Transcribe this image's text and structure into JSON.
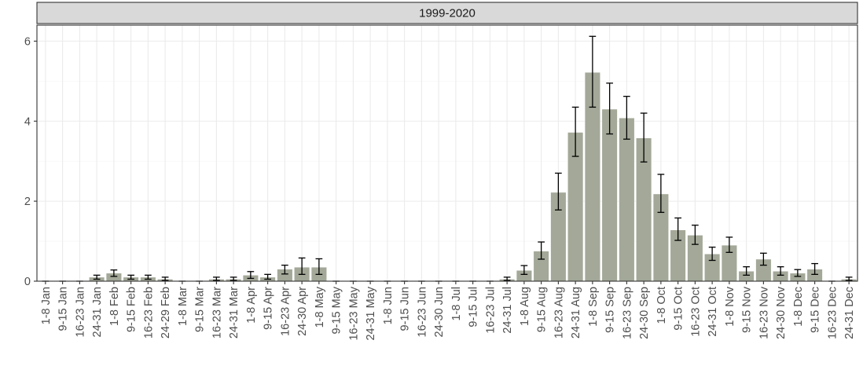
{
  "chart_data": {
    "type": "bar",
    "title": "",
    "facet_label": "1999-2020",
    "xlabel": "",
    "ylabel": "",
    "ylim": [
      0,
      6.4
    ],
    "y_ticks": [
      0,
      2,
      4,
      6
    ],
    "grid": true,
    "categories": [
      "1-8 Jan",
      "9-15 Jan",
      "16-23 Jan",
      "24-31 Jan",
      "1-8 Feb",
      "9-15 Feb",
      "16-23 Feb",
      "24-29 Feb",
      "1-8 Mar",
      "9-15 Mar",
      "16-23 Mar",
      "24-31 Mar",
      "1-8 Apr",
      "9-15 Apr",
      "16-23 Apr",
      "24-30 Apr",
      "1-8 May",
      "9-15 May",
      "16-23 May",
      "24-31 May",
      "1-8 Jun",
      "9-15 Jun",
      "16-23 Jun",
      "24-30 Jun",
      "1-8 Jul",
      "9-15 Jul",
      "16-23 Jul",
      "24-31 Jul",
      "1-8 Aug",
      "9-15 Aug",
      "16-23 Aug",
      "24-31 Aug",
      "1-8 Sep",
      "9-15 Sep",
      "16-23 Sep",
      "24-30 Sep",
      "1-8 Oct",
      "9-15 Oct",
      "16-23 Oct",
      "24-31 Oct",
      "1-8 Nov",
      "9-15 Nov",
      "16-23 Nov",
      "24-30 Nov",
      "1-8 Dec",
      "9-15 Dec",
      "16-23 Dec",
      "24-31 Dec"
    ],
    "values": [
      0,
      0,
      0,
      0.1,
      0.2,
      0.1,
      0.1,
      0.05,
      0,
      0,
      0.05,
      0.05,
      0.15,
      0.1,
      0.3,
      0.35,
      0.35,
      0,
      0,
      0,
      0,
      0,
      0,
      0,
      0,
      0,
      0,
      0.05,
      0.27,
      0.75,
      2.22,
      3.72,
      5.22,
      4.3,
      4.08,
      3.58,
      2.18,
      1.28,
      1.15,
      0.68,
      0.9,
      0.25,
      0.55,
      0.25,
      0.2,
      0.3,
      0,
      0.05
    ],
    "error_lower": [
      0,
      0,
      0,
      0.05,
      0.12,
      0.05,
      0.05,
      0.02,
      0,
      0,
      0.02,
      0.02,
      0.07,
      0.05,
      0.18,
      0.17,
      0.17,
      0,
      0,
      0,
      0,
      0,
      0,
      0,
      0,
      0,
      0,
      0.02,
      0.17,
      0.55,
      1.78,
      3.12,
      4.35,
      3.68,
      3.55,
      2.98,
      1.72,
      1.02,
      0.92,
      0.52,
      0.72,
      0.15,
      0.4,
      0.15,
      0.12,
      0.17,
      0,
      0.02
    ],
    "error_upper": [
      0,
      0,
      0,
      0.15,
      0.28,
      0.15,
      0.15,
      0.1,
      0,
      0,
      0.1,
      0.1,
      0.24,
      0.17,
      0.4,
      0.58,
      0.56,
      0,
      0,
      0,
      0,
      0,
      0,
      0,
      0,
      0,
      0,
      0.1,
      0.39,
      0.98,
      2.7,
      4.35,
      6.12,
      4.95,
      4.62,
      4.2,
      2.67,
      1.58,
      1.4,
      0.85,
      1.1,
      0.36,
      0.7,
      0.36,
      0.29,
      0.44,
      0,
      0.1
    ],
    "colors": {
      "bar_fill": "#a3a898",
      "bar_stroke": "#ffffff",
      "error_bar": "#000000",
      "panel_border": "#333333",
      "grid_major": "#ebebeb",
      "grid_minor": "#f5f5f5",
      "strip_fill": "#d9d9d9",
      "tick_text": "#4d4d4d"
    }
  }
}
